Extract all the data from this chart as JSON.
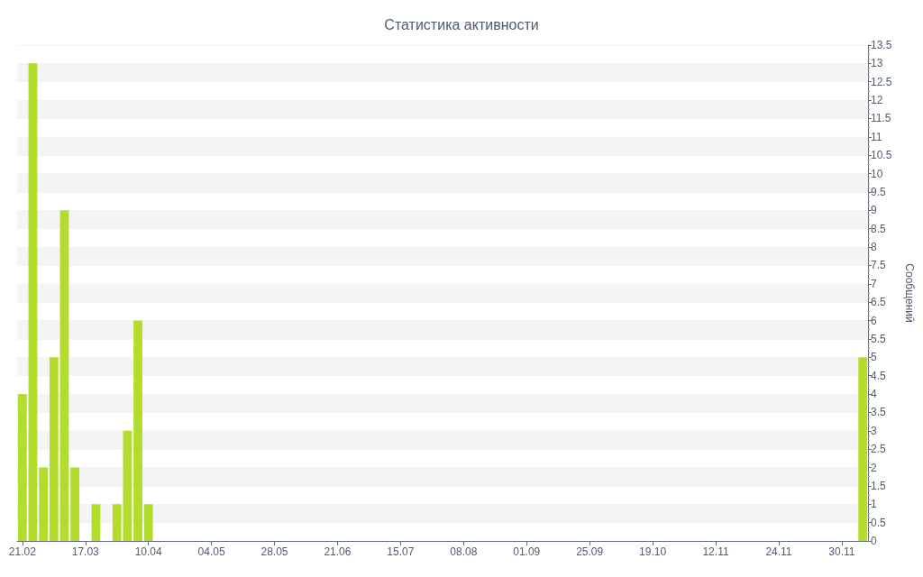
{
  "chart_data": {
    "type": "bar",
    "title": "Статистика активности",
    "ylabel": "Сообщений",
    "categories": [
      "21.02",
      null,
      null,
      null,
      null,
      null,
      "17.03",
      null,
      null,
      null,
      null,
      null,
      "10.04",
      null,
      null,
      null,
      null,
      null,
      "04.05",
      null,
      null,
      null,
      null,
      null,
      "28.05",
      null,
      null,
      null,
      null,
      null,
      "21.06",
      null,
      null,
      null,
      null,
      null,
      "15.07",
      null,
      null,
      null,
      null,
      null,
      "08.08",
      null,
      null,
      null,
      null,
      null,
      "01.09",
      null,
      null,
      null,
      null,
      null,
      "25.09",
      null,
      null,
      null,
      null,
      null,
      "19.10",
      null,
      null,
      null,
      null,
      null,
      "12.11",
      null,
      null,
      null,
      null,
      null,
      "24.11",
      null,
      null,
      null,
      null,
      null,
      "30.11",
      null,
      null
    ],
    "values": [
      4,
      13,
      2,
      5,
      9,
      2,
      null,
      1,
      null,
      1,
      3,
      6,
      1,
      null,
      null,
      null,
      null,
      null,
      null,
      null,
      null,
      null,
      null,
      null,
      null,
      null,
      null,
      null,
      null,
      null,
      null,
      null,
      null,
      null,
      null,
      null,
      null,
      null,
      null,
      null,
      null,
      null,
      null,
      null,
      null,
      null,
      null,
      null,
      null,
      null,
      null,
      null,
      null,
      null,
      null,
      null,
      null,
      null,
      null,
      null,
      null,
      null,
      null,
      null,
      null,
      null,
      null,
      null,
      null,
      null,
      null,
      null,
      null,
      null,
      null,
      null,
      null,
      null,
      null,
      null,
      5
    ],
    "color": "#b4dc2c",
    "ylim": [
      0,
      13.5
    ],
    "yticks": [
      0,
      0.5,
      1,
      1.5,
      2,
      2.5,
      3,
      3.5,
      4,
      4.5,
      5,
      5.5,
      6,
      6.5,
      7,
      7.5,
      8,
      8.5,
      9,
      9.5,
      10,
      10.5,
      11,
      11.5,
      12,
      12.5,
      13,
      13.5
    ],
    "grid": "y"
  }
}
